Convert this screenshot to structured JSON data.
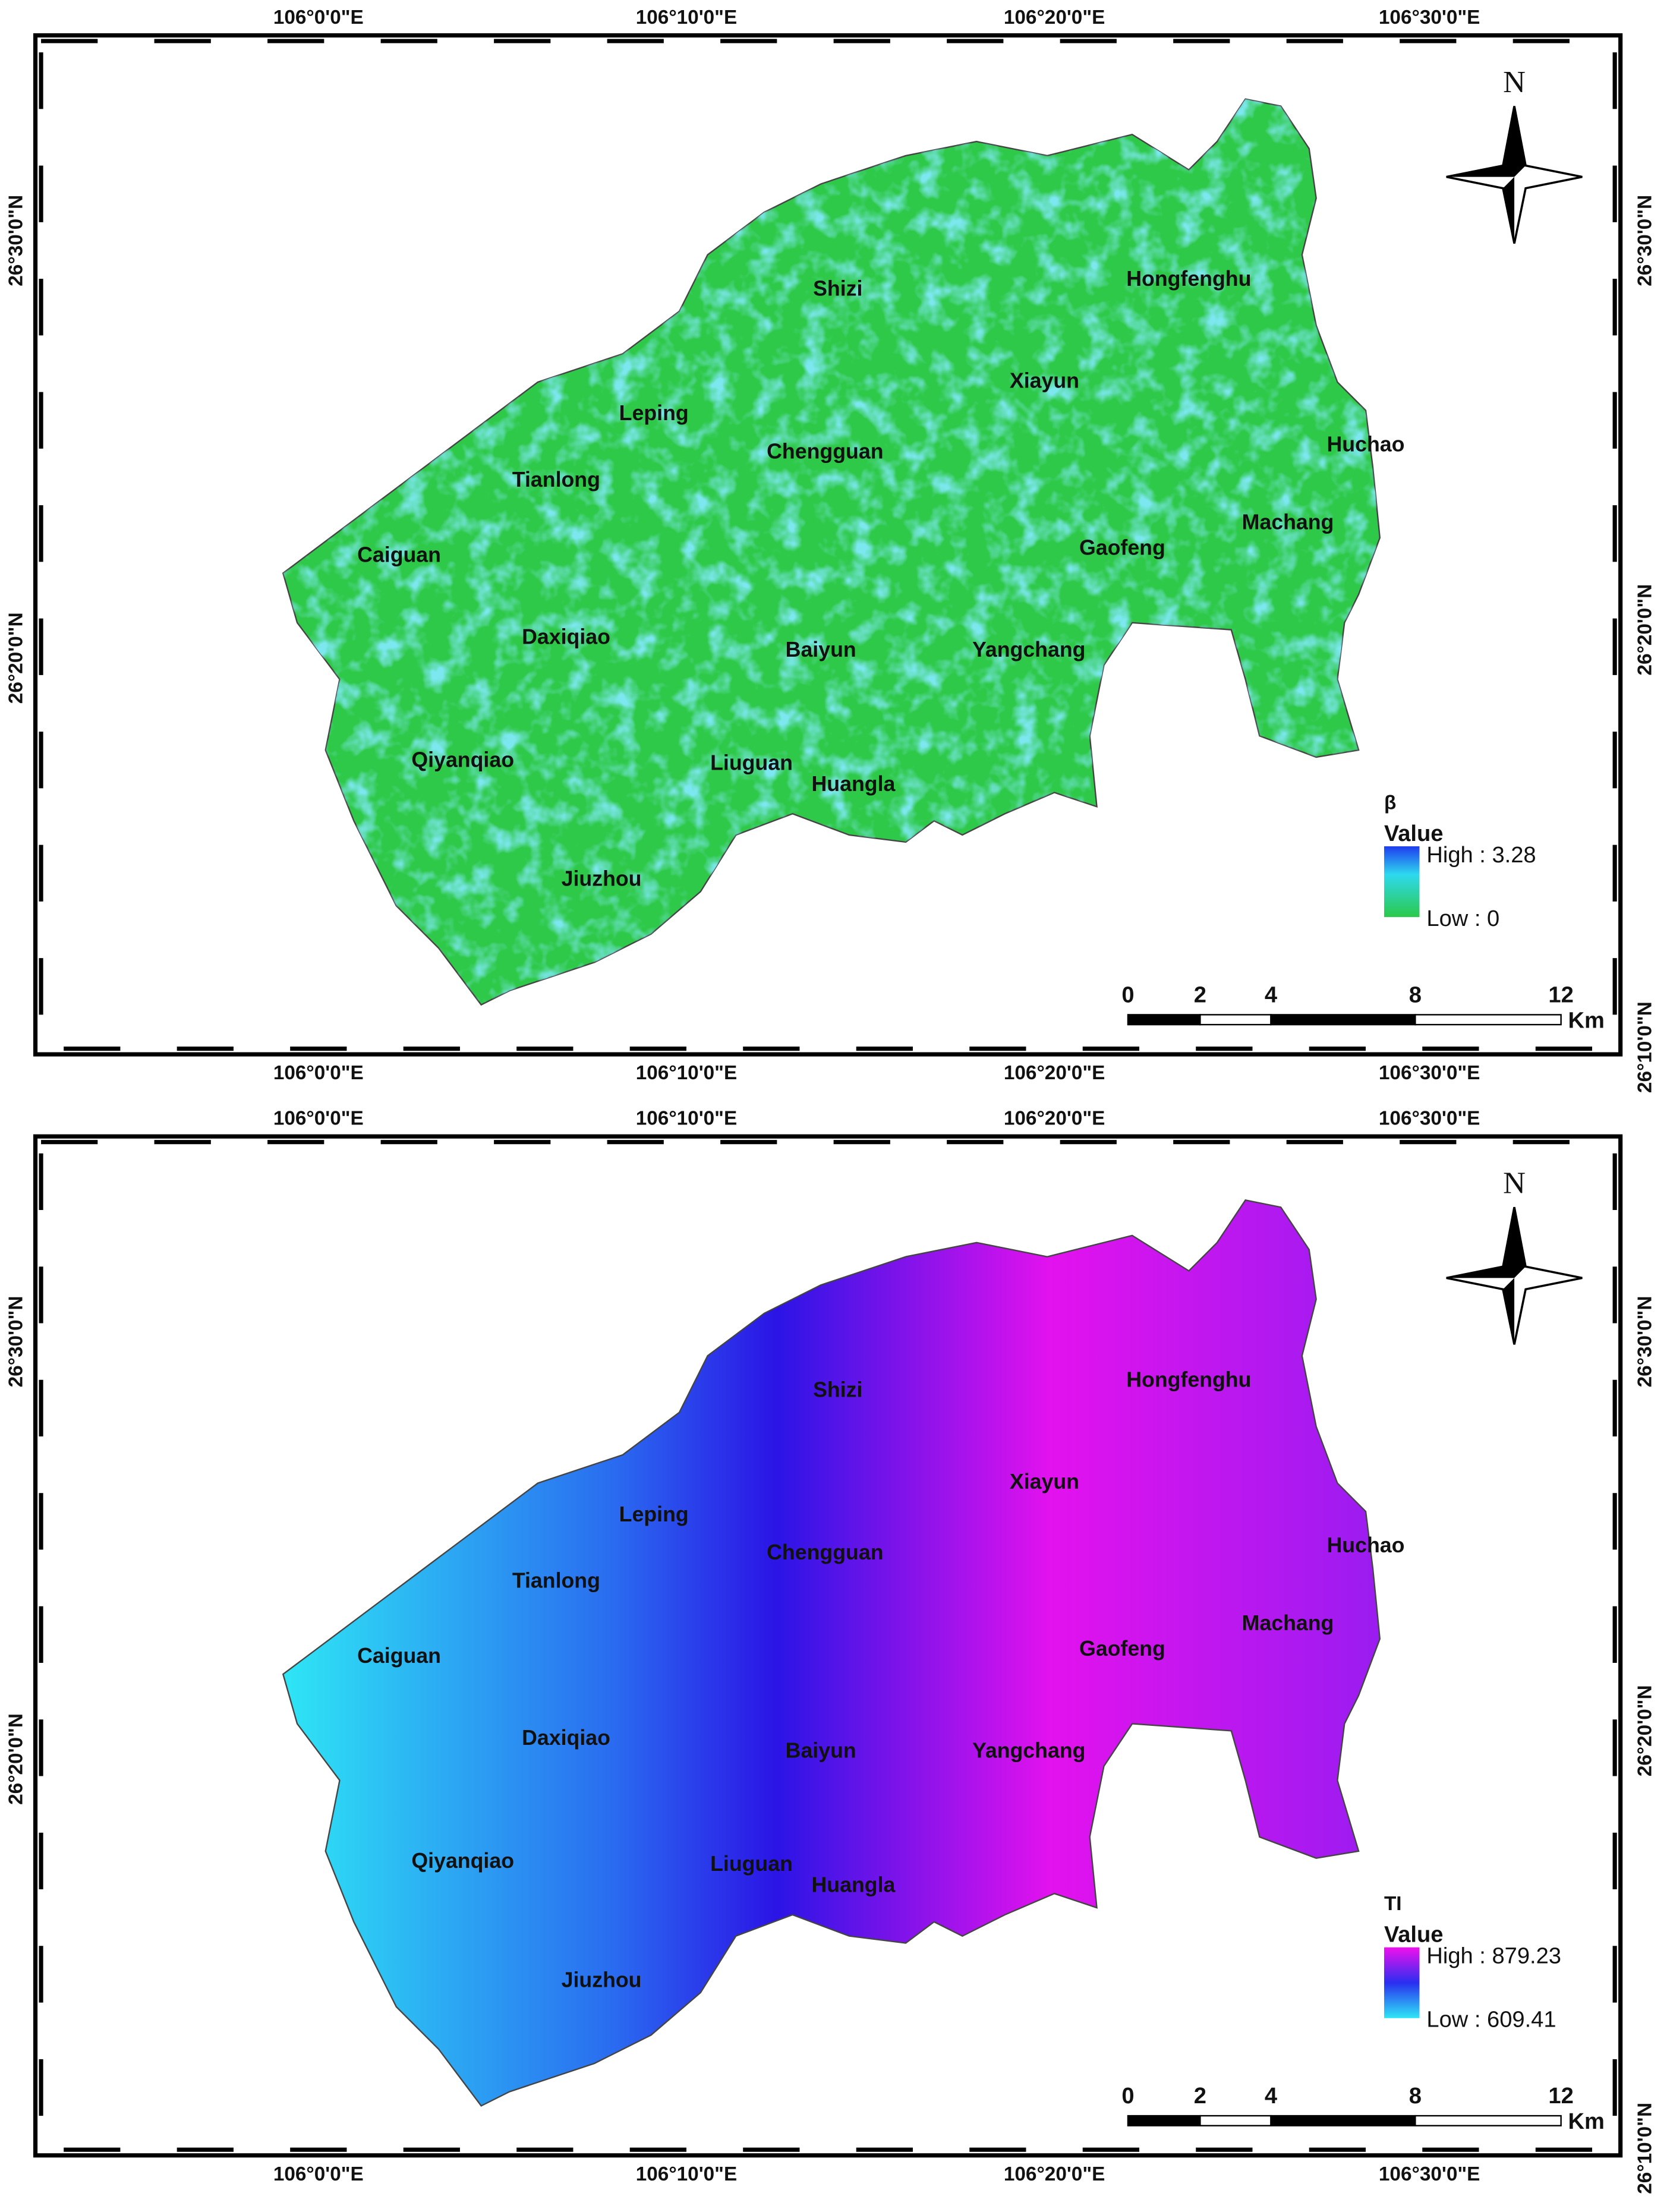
{
  "panels": [
    {
      "top_labels": [
        "106°0'0\"E",
        "106°10'0\"E",
        "106°20'0\"E",
        "106°30'0\"E"
      ],
      "bottom_labels": [
        "106°0'0\"E",
        "106°10'0\"E",
        "106°20'0\"E",
        "106°30'0\"E"
      ],
      "left_labels": [
        "26°30'0\"N",
        "26°20'0\"N"
      ],
      "right_labels": [
        "26°30'0\"N",
        "26°20'0\"N",
        "26°10'0\"N"
      ],
      "north": "N",
      "places": [
        "Shizi",
        "Hongfenghu",
        "Xiayun",
        "Leping",
        "Chengguan",
        "Huchao",
        "Tianlong",
        "Machang",
        "Gaofeng",
        "Caiguan",
        "Daxiqiao",
        "Baiyun",
        "Yangchang",
        "Qiyanqiao",
        "Liuguan",
        "Huangla",
        "Jiuzhou"
      ],
      "legend": {
        "title": "β",
        "field": "Value",
        "high": "High : 3.28",
        "low": "Low : 0"
      },
      "scale": {
        "ticks": [
          "0",
          "2",
          "4",
          "8",
          "12"
        ],
        "unit": "Km"
      }
    },
    {
      "top_labels": [
        "106°0'0\"E",
        "106°10'0\"E",
        "106°20'0\"E",
        "106°30'0\"E"
      ],
      "bottom_labels": [
        "106°0'0\"E",
        "106°10'0\"E",
        "106°20'0\"E",
        "106°30'0\"E"
      ],
      "left_labels": [
        "26°30'0\"N",
        "26°20'0\"N"
      ],
      "right_labels": [
        "26°30'0\"N",
        "26°20'0\"N",
        "26°10'0\"N"
      ],
      "north": "N",
      "places": [
        "Shizi",
        "Hongfenghu",
        "Xiayun",
        "Leping",
        "Chengguan",
        "Huchao",
        "Tianlong",
        "Machang",
        "Gaofeng",
        "Caiguan",
        "Daxiqiao",
        "Baiyun",
        "Yangchang",
        "Qiyanqiao",
        "Liuguan",
        "Huangla",
        "Jiuzhou"
      ],
      "legend": {
        "title": "TI",
        "field": "Value",
        "high": "High : 879.23",
        "low": "Low : 609.41"
      },
      "scale": {
        "ticks": [
          "0",
          "2",
          "4",
          "8",
          "12"
        ],
        "unit": "Km"
      }
    }
  ]
}
